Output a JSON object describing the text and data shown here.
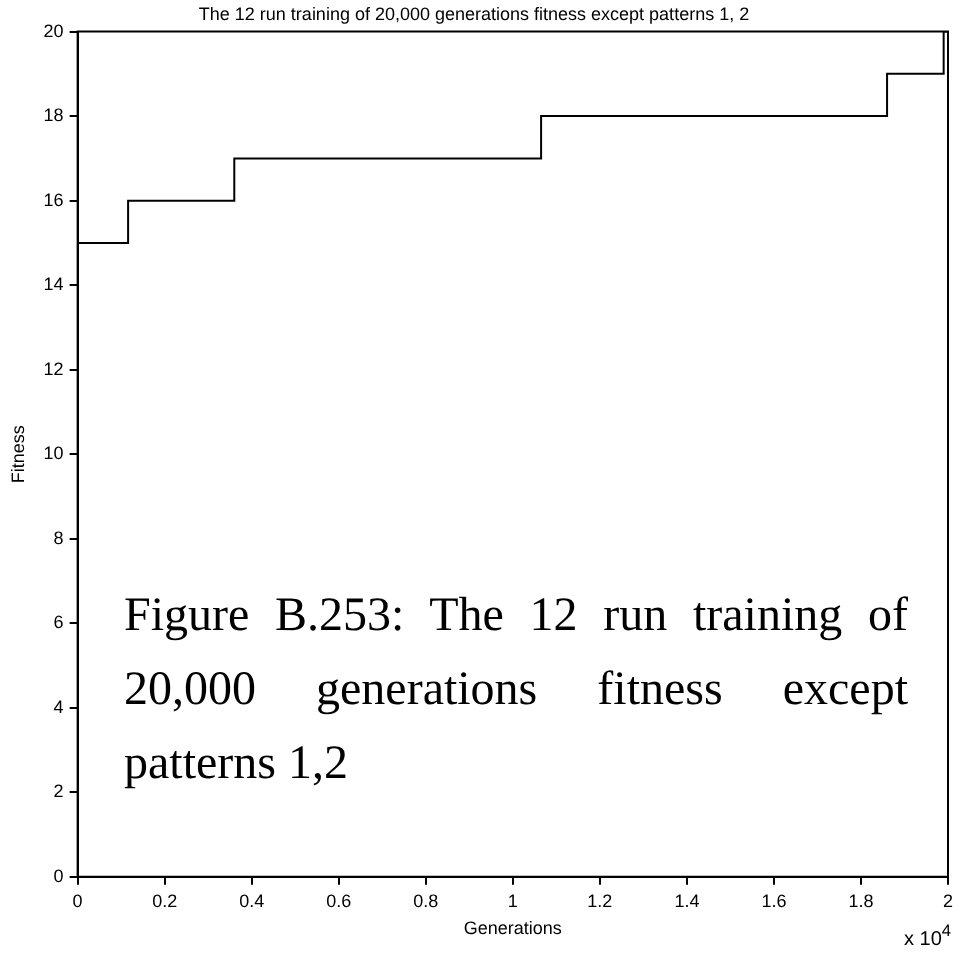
{
  "chart_data": {
    "type": "step",
    "title": "The 12 run training of 20,000 generations fitness except patterns 1, 2",
    "xlabel": "Generations",
    "ylabel": "Fitness",
    "x": [
      0,
      0.116,
      0.36,
      1.065,
      1.86,
      1.99,
      2
    ],
    "series": [
      {
        "color": "#000000",
        "values": [
          15,
          16,
          17,
          18,
          19,
          20,
          20
        ]
      }
    ],
    "xlim": [
      0,
      2
    ],
    "xticks": [
      0,
      0.2,
      0.4,
      0.6,
      0.8,
      1,
      1.2,
      1.4,
      1.6,
      1.8,
      2
    ],
    "ylim": [
      0,
      20
    ],
    "yticks": [
      0,
      2,
      4,
      6,
      8,
      10,
      12,
      14,
      16,
      18,
      20
    ],
    "grid": false,
    "legend": false,
    "annotations": [
      "Figure B.253: The 12 run training of 20,000 generations fitness except patterns 1,2",
      "x 10$^{4}$"
    ]
  }
}
